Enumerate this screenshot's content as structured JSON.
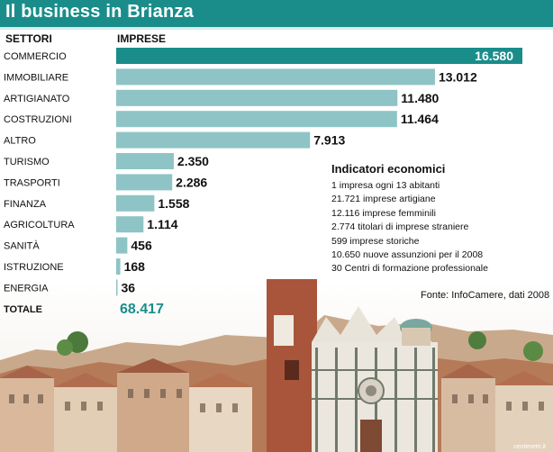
{
  "header": {
    "title": "Il business in Brianza"
  },
  "chart_data": {
    "type": "bar",
    "orientation": "horizontal",
    "category_header": "SETTORI",
    "value_header": "IMPRESE",
    "categories": [
      "COMMERCIO",
      "IMMOBILIARE",
      "ARTIGIANATO",
      "COSTRUZIONI",
      "ALTRO",
      "TURISMO",
      "TRASPORTI",
      "FINANZA",
      "AGRICOLTURA",
      "SANITÀ",
      "ISTRUZIONE",
      "ENERGIA"
    ],
    "values": [
      16580,
      13012,
      11480,
      11464,
      7913,
      2350,
      2286,
      1558,
      1114,
      456,
      168,
      36
    ],
    "value_labels": [
      "16.580",
      "13.012",
      "11.480",
      "11.464",
      "7.913",
      "2.350",
      "2.286",
      "1.558",
      "1.114",
      "456",
      "168",
      "36"
    ],
    "xlim": [
      0,
      16580
    ],
    "grid": false,
    "total_label": "TOTALE",
    "total_value": "68.417",
    "colors": {
      "highlight": "#1a8d8b",
      "bar": "#8ec4c5",
      "total": "#1a8d8b"
    }
  },
  "indicators": {
    "title": "Indicatori economici",
    "items": [
      "1 impresa ogni 13 abitanti",
      "21.721 imprese artigiane",
      "12.116 imprese femminili",
      "2.774 titolari di imprese straniere",
      "599 imprese storiche",
      "10.650 nuove assunzioni per il 2008",
      "30 Centri di formazione professionale"
    ]
  },
  "source": "Fonte: InfoCamere, dati 2008",
  "credit": "centimetri.it",
  "colors": {
    "title_bar": "#1a8d8b"
  }
}
